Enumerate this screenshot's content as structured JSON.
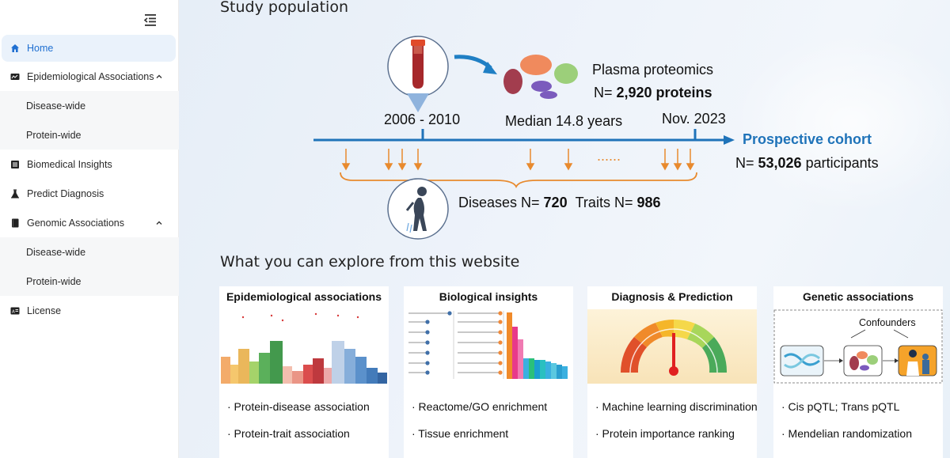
{
  "sidebar": {
    "items": [
      {
        "label": "Home"
      },
      {
        "label": "Epidemiological Associations"
      },
      {
        "label": "Disease-wide"
      },
      {
        "label": "Protein-wide"
      },
      {
        "label": "Biomedical Insights"
      },
      {
        "label": "Predict Diagnosis"
      },
      {
        "label": "Genomic Associations"
      },
      {
        "label": "Disease-wide"
      },
      {
        "label": "Protein-wide"
      },
      {
        "label": "License"
      }
    ],
    "active": "Home"
  },
  "main": {
    "study_heading": "Study population",
    "plasma_label": "Plasma proteomics",
    "proteins_prefix": "N= ",
    "proteins_value": "2,920 proteins",
    "start_period": "2006 - 2010",
    "median_label": "Median 14.8 years",
    "end_date": "Nov. 2023",
    "cohort_label": "Prospective cohort",
    "participants_prefix": "N= ",
    "participants_value": "53,026",
    "participants_suffix": " participants",
    "diseases_prefix": "Diseases N= ",
    "diseases_value": "720",
    "traits_prefix": "Traits N= ",
    "traits_value": "986",
    "dots": "......",
    "explore_heading": "What you can explore from this website"
  },
  "cards": [
    {
      "title": "Epidemiological associations",
      "points": [
        "· Protein-disease association",
        "· Protein-trait association"
      ]
    },
    {
      "title": "Biological insights",
      "points": [
        "· Reactome/GO enrichment",
        "· Tissue enrichment"
      ]
    },
    {
      "title": "Diagnosis & Prediction",
      "points": [
        "· Machine learning discrimination",
        "· Protein importance ranking"
      ]
    },
    {
      "title": "Genetic associations",
      "confounders": "Confounders",
      "points": [
        "· Cis pQTL; Trans pQTL",
        "· Mendelian randomization"
      ]
    }
  ],
  "colors": {
    "accent": "#1f6fd1",
    "timeline": "#1f73b9",
    "arrows": "#e88a2e",
    "active_bg": "#eaf2fb"
  }
}
